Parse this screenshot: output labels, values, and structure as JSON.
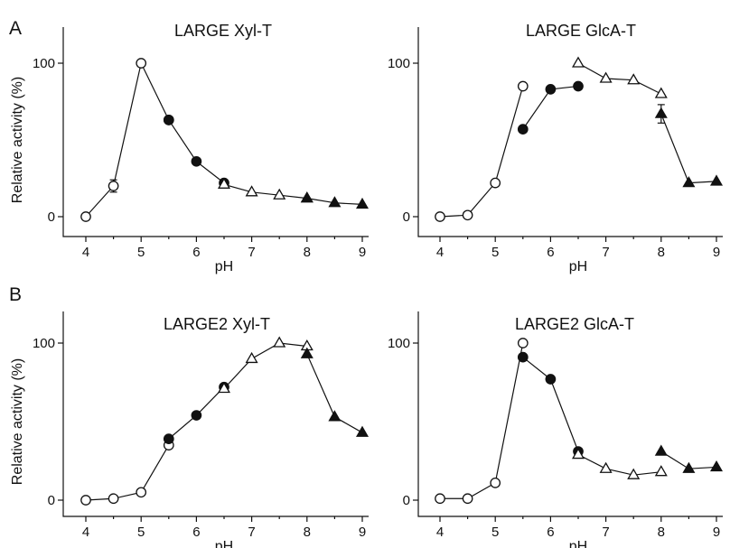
{
  "panel_letters": [
    "A",
    "B"
  ],
  "chart_data": [
    {
      "type": "line",
      "title": "LARGE Xyl-T",
      "panel_letter": "A",
      "xlabel": "pH",
      "ylabel": "Relative activity (%)",
      "xlim": [
        3.8,
        9.2
      ],
      "ylim": [
        0,
        100
      ],
      "xticks": [
        4,
        5,
        6,
        7,
        8,
        9
      ],
      "yticks": [
        0,
        100
      ],
      "show_ylabel": true,
      "series": [
        {
          "marker": "open-circle",
          "x": [
            4,
            4.5,
            5,
            5.5
          ],
          "y": [
            0,
            20,
            100,
            63
          ],
          "err": [
            0,
            4,
            0,
            0
          ]
        },
        {
          "marker": "filled-circle",
          "x": [
            5.5,
            6,
            6.5
          ],
          "y": [
            63,
            36,
            22
          ],
          "err": [
            0,
            0,
            0
          ]
        },
        {
          "marker": "open-triangle",
          "x": [
            6.5,
            7,
            7.5,
            8
          ],
          "y": [
            21,
            16,
            14,
            12
          ],
          "err": [
            0,
            0,
            0,
            0
          ]
        },
        {
          "marker": "filled-triangle",
          "x": [
            8,
            8.5,
            9
          ],
          "y": [
            12,
            9,
            8
          ],
          "err": [
            0,
            0,
            0
          ]
        }
      ]
    },
    {
      "type": "line",
      "title": "LARGE GlcA-T",
      "xlabel": "pH",
      "ylabel": "",
      "xlim": [
        3.8,
        9.2
      ],
      "ylim": [
        0,
        100
      ],
      "xticks": [
        4,
        5,
        6,
        7,
        8,
        9
      ],
      "yticks": [
        0,
        100
      ],
      "show_ylabel": false,
      "series": [
        {
          "marker": "open-circle",
          "x": [
            4,
            4.5,
            5,
            5.5
          ],
          "y": [
            0,
            1,
            22,
            85
          ],
          "err": [
            0,
            0,
            0,
            0
          ]
        },
        {
          "marker": "filled-circle",
          "x": [
            5.5,
            6,
            6.5
          ],
          "y": [
            57,
            83,
            85
          ],
          "err": [
            0,
            0,
            0
          ]
        },
        {
          "marker": "open-triangle",
          "x": [
            6.5,
            7,
            7.5,
            8
          ],
          "y": [
            100,
            90,
            89,
            80
          ],
          "err": [
            0,
            0,
            0,
            0
          ]
        },
        {
          "marker": "filled-triangle",
          "x": [
            8,
            8.5,
            9
          ],
          "y": [
            67,
            22,
            23
          ],
          "err": [
            6,
            0,
            0
          ]
        }
      ]
    },
    {
      "type": "line",
      "title": "LARGE2 Xyl-T",
      "panel_letter": "B",
      "xlabel": "pH",
      "ylabel": "Relative activity (%)",
      "xlim": [
        3.8,
        9.2
      ],
      "ylim": [
        0,
        100
      ],
      "xticks": [
        4,
        5,
        6,
        7,
        8,
        9
      ],
      "yticks": [
        0,
        100
      ],
      "show_ylabel": true,
      "series": [
        {
          "marker": "open-circle",
          "x": [
            4,
            4.5,
            5,
            5.5
          ],
          "y": [
            0,
            1,
            5,
            35
          ],
          "err": [
            0,
            0,
            0,
            0
          ]
        },
        {
          "marker": "filled-circle",
          "x": [
            5.5,
            6,
            6.5
          ],
          "y": [
            39,
            54,
            72
          ],
          "err": [
            0,
            0,
            0
          ]
        },
        {
          "marker": "open-triangle",
          "x": [
            6.5,
            7,
            7.5,
            8
          ],
          "y": [
            71,
            90,
            100,
            98
          ],
          "err": [
            0,
            0,
            0,
            0
          ]
        },
        {
          "marker": "filled-triangle",
          "x": [
            8,
            8.5,
            9
          ],
          "y": [
            93,
            53,
            43
          ],
          "err": [
            0,
            0,
            0
          ]
        }
      ]
    },
    {
      "type": "line",
      "title": "LARGE2 GlcA-T",
      "xlabel": "pH",
      "ylabel": "",
      "xlim": [
        3.8,
        9.2
      ],
      "ylim": [
        0,
        100
      ],
      "xticks": [
        4,
        5,
        6,
        7,
        8,
        9
      ],
      "yticks": [
        0,
        100
      ],
      "show_ylabel": false,
      "series": [
        {
          "marker": "open-circle",
          "x": [
            4,
            4.5,
            5,
            5.5
          ],
          "y": [
            1,
            1,
            11,
            100
          ],
          "err": [
            0,
            0,
            0,
            0
          ]
        },
        {
          "marker": "filled-circle",
          "x": [
            5.5,
            6,
            6.5
          ],
          "y": [
            91,
            77,
            31
          ],
          "err": [
            0,
            0,
            0
          ]
        },
        {
          "marker": "open-triangle",
          "x": [
            6.5,
            7,
            7.5,
            8
          ],
          "y": [
            29,
            20,
            16,
            18
          ],
          "err": [
            0,
            0,
            0,
            0
          ]
        },
        {
          "marker": "filled-triangle",
          "x": [
            8,
            8.5,
            9
          ],
          "y": [
            31,
            20,
            21
          ],
          "err": [
            0,
            0,
            0
          ]
        }
      ]
    }
  ]
}
